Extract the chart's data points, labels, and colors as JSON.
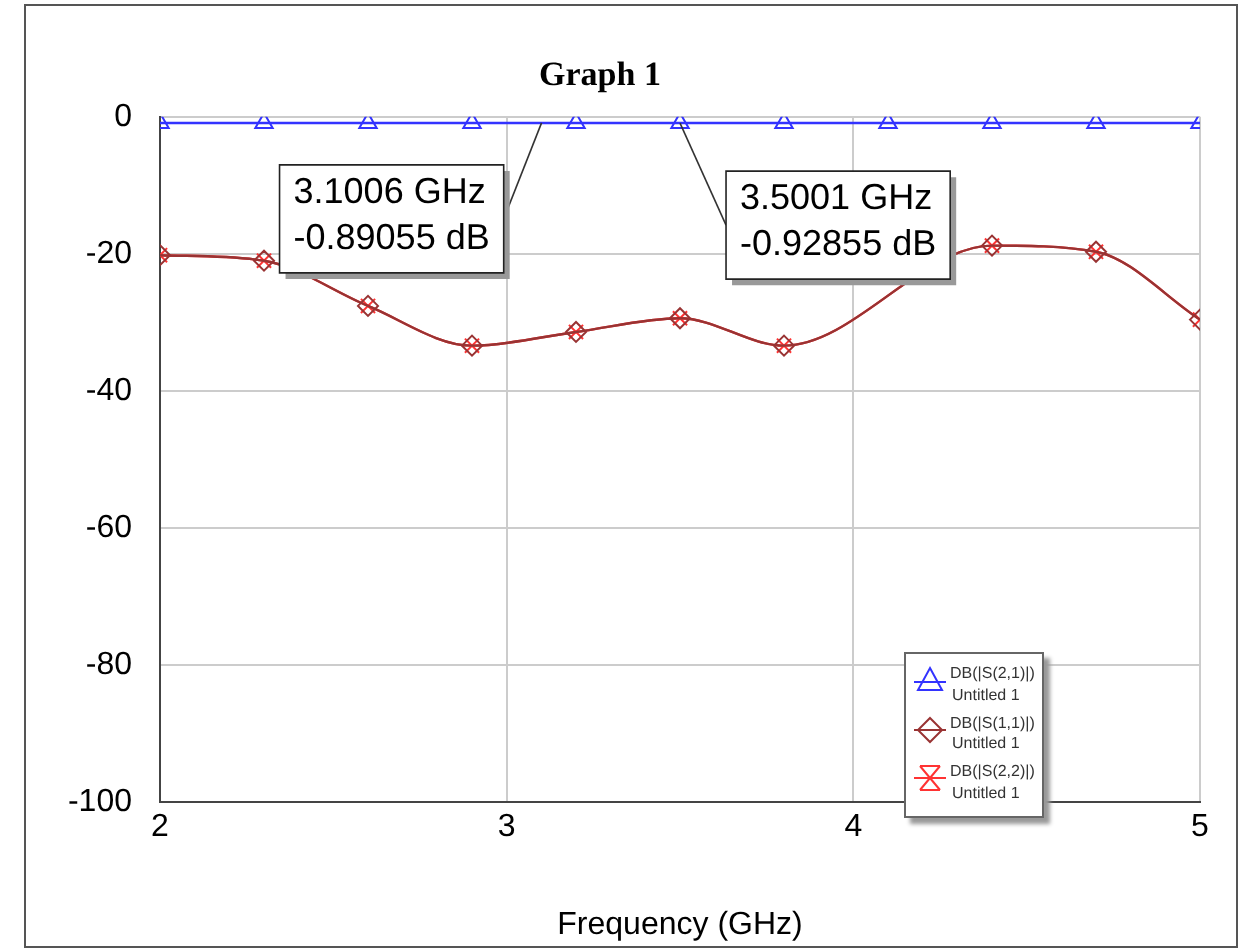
{
  "chart_data": {
    "type": "line",
    "title": "Graph 1",
    "xlabel": "Frequency (GHz)",
    "x": [
      2,
      2.3,
      2.6,
      2.9,
      3.2,
      3.5,
      3.8,
      4.1,
      4.4,
      4.7,
      5
    ],
    "series": [
      {
        "name": "DB(|S(2,1)|)\nUntitled 1",
        "color": "#3333ff",
        "marker": "triangle",
        "values": [
          -0.9,
          -0.9,
          -0.9,
          -0.9,
          -0.9,
          -0.9,
          -0.9,
          -0.9,
          -0.9,
          -0.9,
          -0.9
        ]
      },
      {
        "name": "DB(|S(1,1)|)\nUntitled 1",
        "color": "#993333",
        "marker": "diamond",
        "values": [
          -20.2,
          -21,
          -27.6,
          -33.4,
          -31.4,
          -29.4,
          -33.4,
          null,
          -18.8,
          -19.7,
          -29.6
        ]
      },
      {
        "name": "DB(|S(2,2)|)\nUntitled 1",
        "color": "#ff3333",
        "marker": "cross",
        "values": [
          -20.2,
          -21,
          -27.6,
          -33.4,
          -31.4,
          -29.4,
          -33.4,
          null,
          -18.8,
          -19.7,
          -29.6
        ]
      }
    ],
    "xlim": [
      2,
      5
    ],
    "xticks": [
      2,
      3,
      4,
      5
    ],
    "ylim": [
      -100,
      0
    ],
    "yticks": [
      -100,
      -80,
      -60,
      -40,
      -20,
      0
    ],
    "grid": true,
    "legend": "bottom right",
    "line_style": "solid",
    "annotations": [
      {
        "text": "3.1006 GHz\n-0.89055 dB",
        "x": 3.1006,
        "y": -0.89055
      },
      {
        "text": "3.5001 GHz\n-0.92855 dB",
        "x": 3.5001,
        "y": -0.92855
      }
    ]
  }
}
